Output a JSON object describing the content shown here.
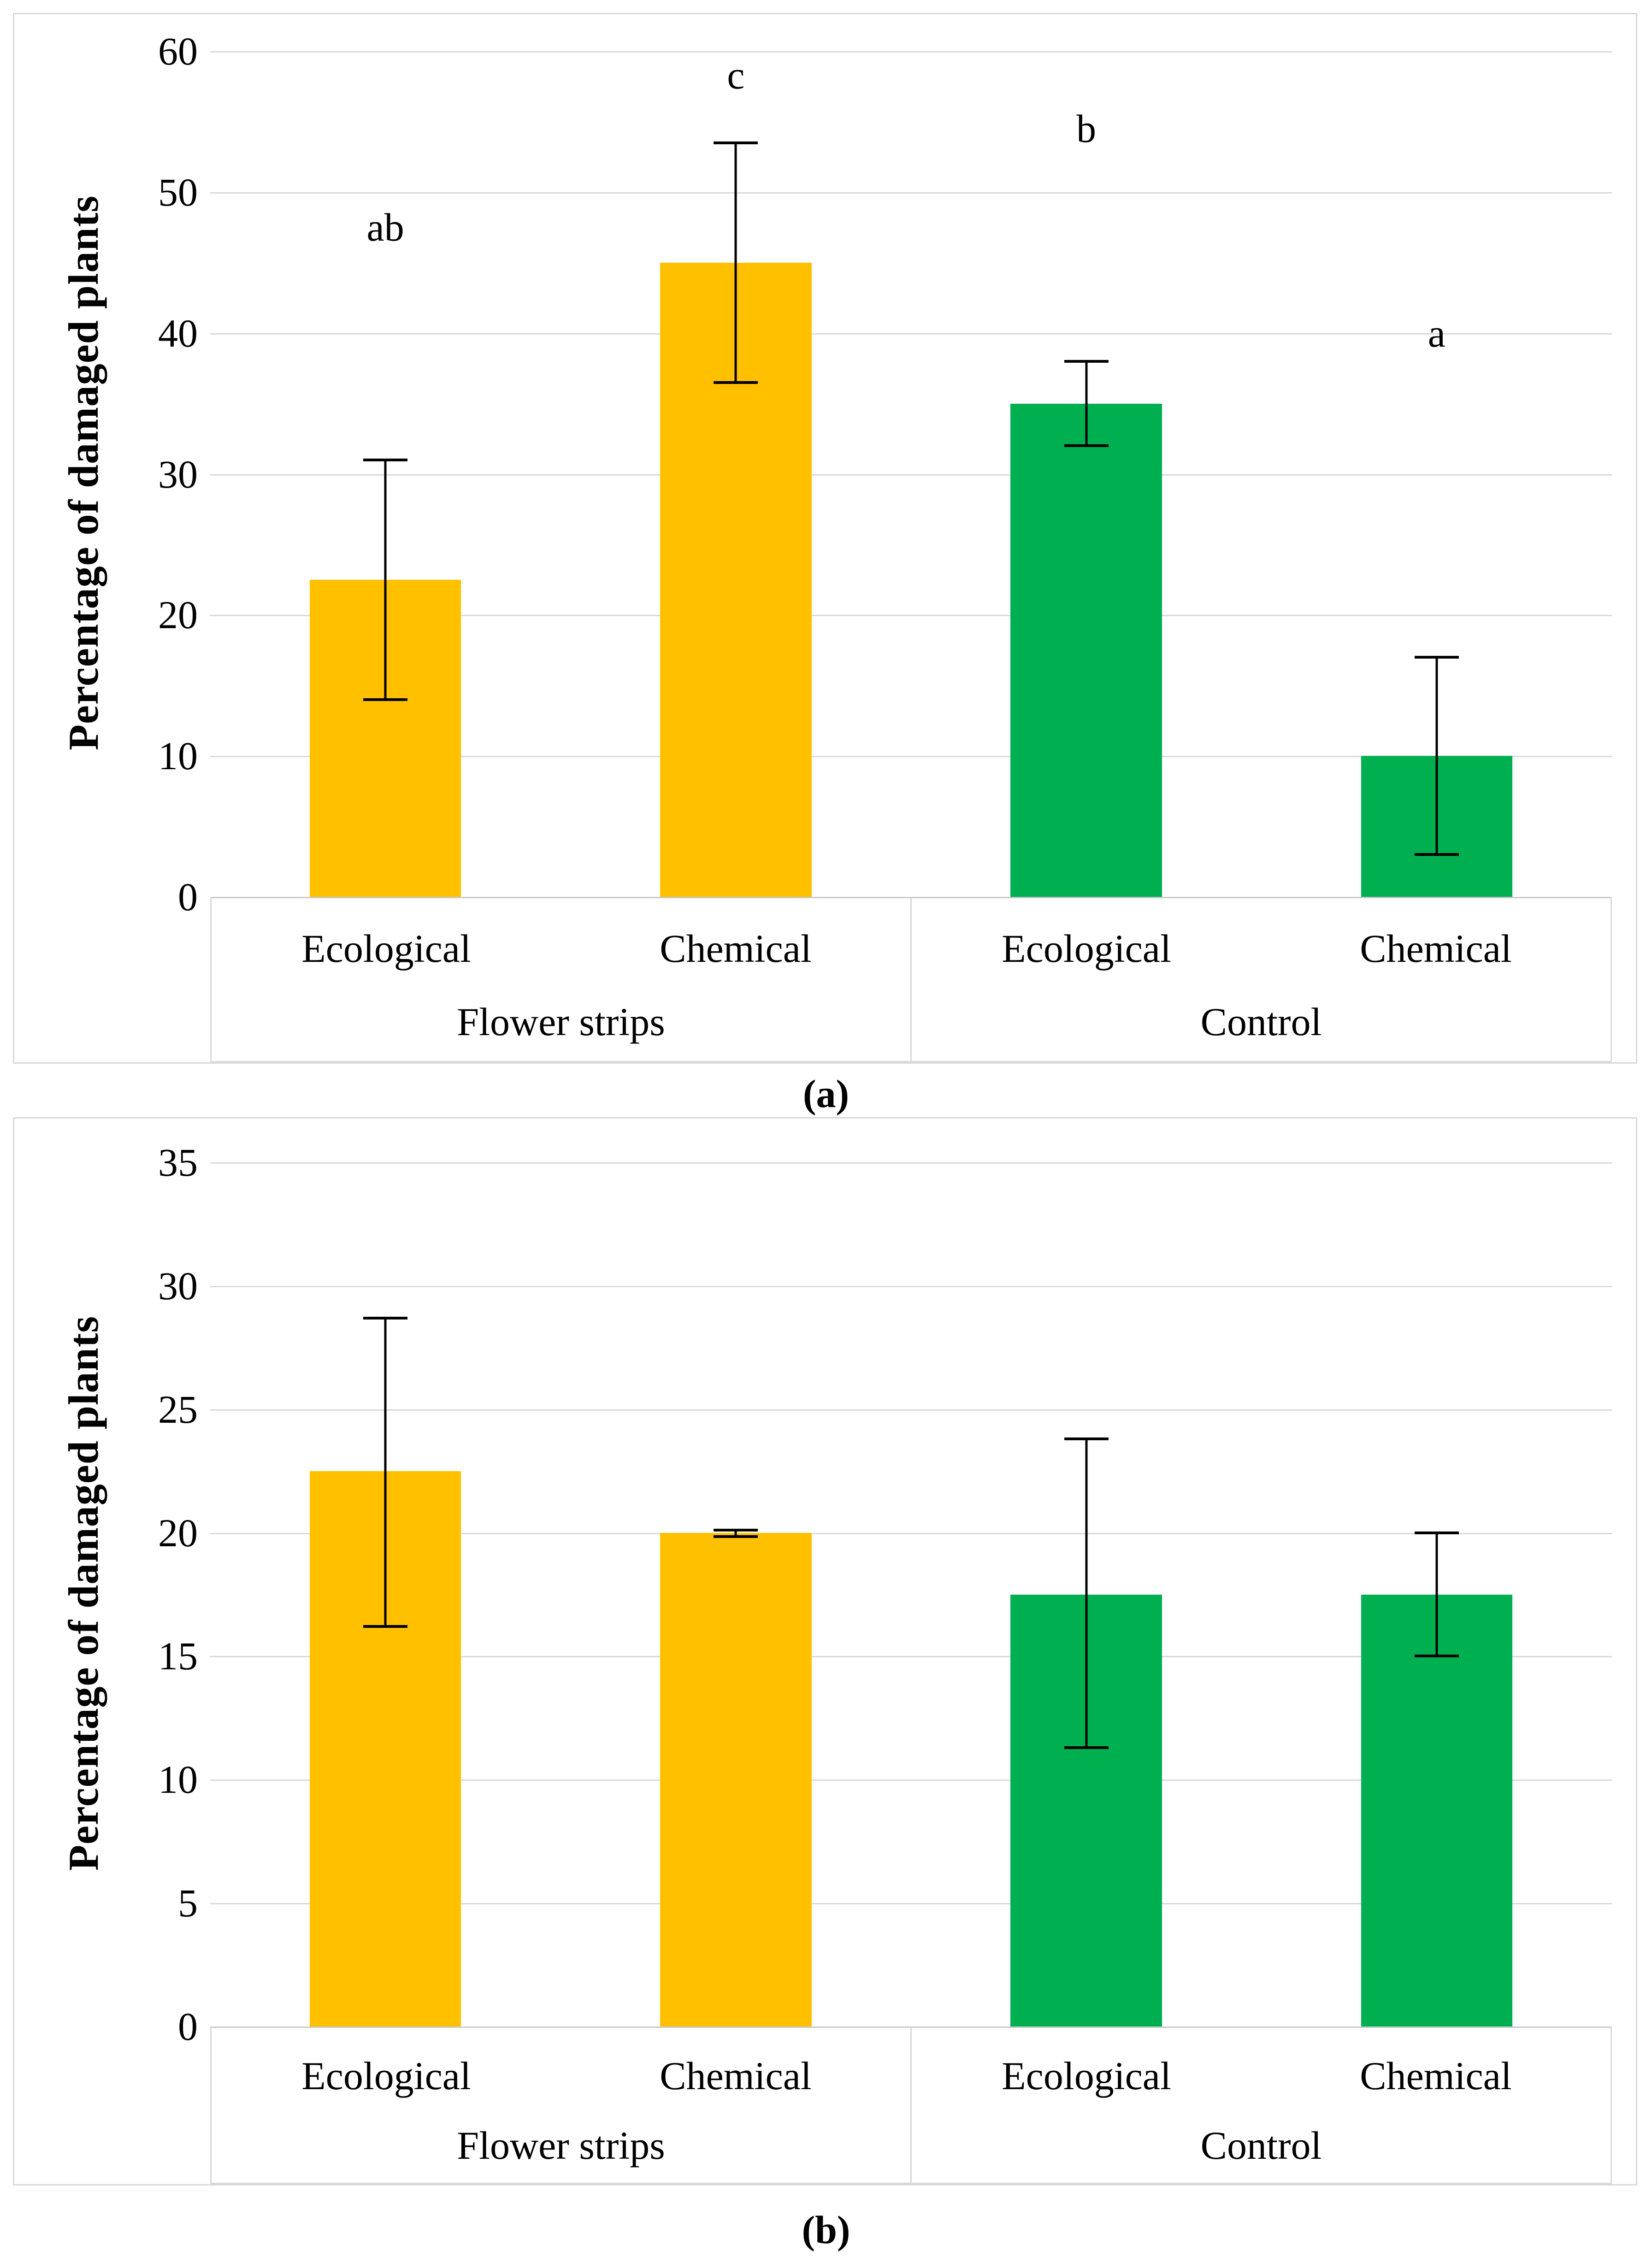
{
  "style": {
    "bar_yellow": "#FFC000",
    "bar_green": "#00B050",
    "gridline_color": "#D9D9D9",
    "panel_border_color": "#D9D9D9",
    "error_bar_color": "#000000",
    "text_color": "#000000",
    "background": "#FFFFFF"
  },
  "chart_data": [
    {
      "type": "bar",
      "panel": "a",
      "caption": "(a)",
      "title": "",
      "xlabel": "",
      "ylabel": "Percentage of damaged plants",
      "ylim": [
        0,
        60
      ],
      "yticks": [
        0,
        10,
        20,
        30,
        40,
        50,
        60
      ],
      "grid": "horizontal",
      "legend": "none",
      "groups": [
        {
          "label": "Flower strips",
          "color": "#FFC000",
          "bars": [
            {
              "category": "Ecological",
              "value": 22.5,
              "err_low": 14,
              "err_high": 31,
              "letter": "ab",
              "letter_y": 47.5
            },
            {
              "category": "Chemical",
              "value": 45,
              "err_low": 36.5,
              "err_high": 53.5,
              "letter": "c",
              "letter_y": 58.3
            }
          ]
        },
        {
          "label": "Control",
          "color": "#00B050",
          "bars": [
            {
              "category": "Ecological",
              "value": 35,
              "err_low": 32,
              "err_high": 38,
              "letter": "b",
              "letter_y": 54.5
            },
            {
              "category": "Chemical",
              "value": 10,
              "err_low": 3,
              "err_high": 17,
              "letter": "a",
              "letter_y": 40
            }
          ]
        }
      ]
    },
    {
      "type": "bar",
      "panel": "b",
      "caption": "(b)",
      "title": "",
      "xlabel": "",
      "ylabel": "Percentage of damaged plants",
      "ylim": [
        0,
        35
      ],
      "yticks": [
        0,
        5,
        10,
        15,
        20,
        25,
        30,
        35
      ],
      "grid": "horizontal",
      "legend": "none",
      "groups": [
        {
          "label": "Flower strips",
          "color": "#FFC000",
          "bars": [
            {
              "category": "Ecological",
              "value": 22.5,
              "err_low": 16.2,
              "err_high": 28.7,
              "letter": null,
              "letter_y": null
            },
            {
              "category": "Chemical",
              "value": 20,
              "err_low": 19.85,
              "err_high": 20.1,
              "letter": null,
              "letter_y": null
            }
          ]
        },
        {
          "label": "Control",
          "color": "#00B050",
          "bars": [
            {
              "category": "Ecological",
              "value": 17.5,
              "err_low": 11.3,
              "err_high": 23.8,
              "letter": null,
              "letter_y": null
            },
            {
              "category": "Chemical",
              "value": 17.5,
              "err_low": 15,
              "err_high": 20,
              "letter": null,
              "letter_y": null
            }
          ]
        }
      ]
    }
  ]
}
